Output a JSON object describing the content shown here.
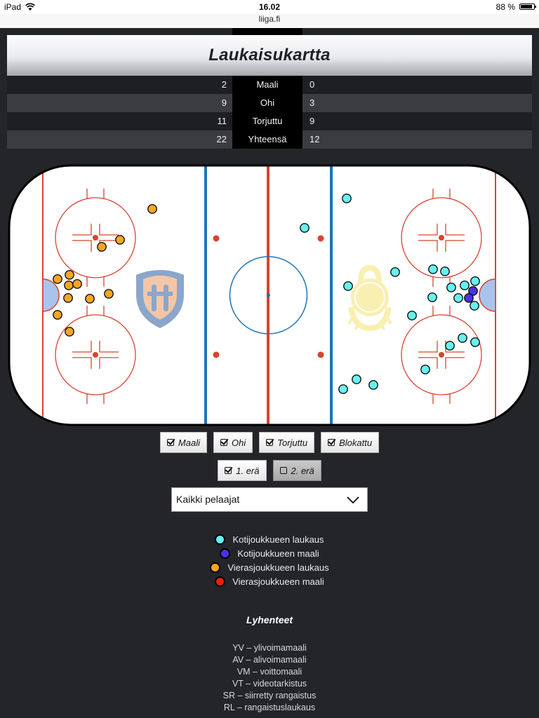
{
  "status_bar": {
    "device": "iPad",
    "time": "16.02",
    "battery": "88 %",
    "battery_level": 0.88
  },
  "browser": {
    "url": "liiga.fi"
  },
  "shotmap": {
    "title": "Laukaisukartta",
    "stats": [
      {
        "home": "2",
        "label": "Maali",
        "away": "0"
      },
      {
        "home": "9",
        "label": "Ohi",
        "away": "3"
      },
      {
        "home": "11",
        "label": "Torjuttu",
        "away": "9"
      },
      {
        "home": "22",
        "label": "Yhteensä",
        "away": "12"
      }
    ]
  },
  "rink": {
    "home_shots": [],
    "away_shots": []
  },
  "colors": {
    "home_shot": "#66f2f0",
    "home_goal": "#4a33e6",
    "away_shot": "#f5a623",
    "away_goal": "#e8210b",
    "blue_line": "#1f73b7",
    "red_line": "#d9432f"
  },
  "filters": {
    "types": [
      {
        "label": "Maali",
        "checked": true
      },
      {
        "label": "Ohi",
        "checked": true
      },
      {
        "label": "Torjuttu",
        "checked": true
      },
      {
        "label": "Blokattu",
        "checked": true
      }
    ],
    "periods": [
      {
        "label": "1. erä",
        "checked": true
      },
      {
        "label": "2. erä",
        "checked": false
      }
    ],
    "player_select": "Kaikki pelaajat"
  },
  "legend": [
    {
      "label": "Kotijoukkueen laukaus",
      "color": "#66f2f0"
    },
    {
      "label": "Kotijoukkueen maali",
      "color": "#4a33e6"
    },
    {
      "label": "Vierasjoukkueen laukaus",
      "color": "#f5a623"
    },
    {
      "label": "Vierasjoukkueen maali",
      "color": "#e8210b"
    }
  ],
  "abbreviations": {
    "title": "Lyhenteet",
    "items": [
      "YV – ylivoimamaali",
      "AV – alivoimamaali",
      "VM – voittomaali",
      "VT – videotarkistus",
      "SR – siirretty rangaistus",
      "RL – rangaistuslaukaus"
    ]
  }
}
